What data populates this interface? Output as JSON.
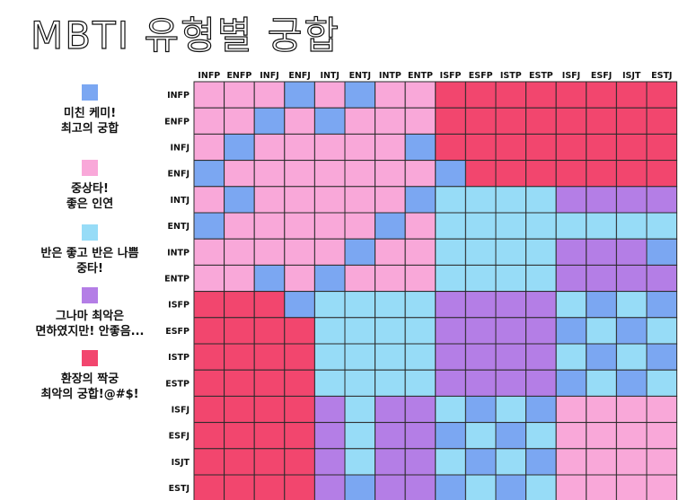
{
  "title": "MBTI 유형별 궁합",
  "legend": [
    {
      "color": "#7ba7f2",
      "label": "미친 케미!\n최고의 궁합"
    },
    {
      "color": "#f9a8d9",
      "label": "중상타!\n좋은 인연"
    },
    {
      "color": "#97dcf7",
      "label": "반은 좋고 반은 나쁨\n중타!"
    },
    {
      "color": "#b47ee6",
      "label": "그나마 최악은\n면하였지만! 안좋음..."
    },
    {
      "color": "#f2466e",
      "label": "환장의 짝궁\n최악의 궁합!@#$!"
    }
  ],
  "chart_data": {
    "type": "heatmap",
    "columns": [
      "INFP",
      "ENFP",
      "INFJ",
      "ENFJ",
      "INTJ",
      "ENTJ",
      "INTP",
      "ENTP",
      "ISFP",
      "ESFP",
      "ISTP",
      "ESTP",
      "ISFJ",
      "ESFJ",
      "ISJT",
      "ESTJ"
    ],
    "rows": [
      "INFP",
      "ENFP",
      "INFJ",
      "ENFJ",
      "INTJ",
      "ENTJ",
      "INTP",
      "ENTP",
      "ISFP",
      "ESFP",
      "ISTP",
      "ESTP",
      "ISFJ",
      "ESFJ",
      "ISJT",
      "ESTJ"
    ],
    "levels": {
      "1": "미친 케미! 최고의 궁합",
      "2": "중상타! 좋은 인연",
      "3": "반은 좋고 반은 나쁨 중타!",
      "4": "그나마 최악은 면하였지만! 안좋음...",
      "5": "환장의 짝궁 최악의 궁합!@#$!"
    },
    "values": [
      [
        2,
        2,
        2,
        1,
        2,
        1,
        2,
        2,
        5,
        5,
        5,
        5,
        5,
        5,
        5,
        5
      ],
      [
        2,
        2,
        1,
        2,
        1,
        2,
        2,
        2,
        5,
        5,
        5,
        5,
        5,
        5,
        5,
        5
      ],
      [
        2,
        1,
        2,
        2,
        2,
        2,
        2,
        1,
        5,
        5,
        5,
        5,
        5,
        5,
        5,
        5
      ],
      [
        1,
        2,
        2,
        2,
        2,
        2,
        2,
        2,
        1,
        5,
        5,
        5,
        5,
        5,
        5,
        5
      ],
      [
        2,
        1,
        2,
        2,
        2,
        2,
        2,
        1,
        3,
        3,
        3,
        3,
        4,
        4,
        4,
        4
      ],
      [
        1,
        2,
        2,
        2,
        2,
        2,
        1,
        2,
        3,
        3,
        3,
        3,
        3,
        3,
        3,
        3
      ],
      [
        2,
        2,
        2,
        2,
        2,
        1,
        2,
        2,
        3,
        3,
        3,
        3,
        4,
        4,
        4,
        1
      ],
      [
        2,
        2,
        1,
        2,
        1,
        2,
        2,
        2,
        3,
        3,
        3,
        3,
        4,
        4,
        4,
        4
      ],
      [
        5,
        5,
        5,
        1,
        3,
        3,
        3,
        3,
        4,
        4,
        4,
        4,
        3,
        1,
        3,
        1
      ],
      [
        5,
        5,
        5,
        5,
        3,
        3,
        3,
        3,
        4,
        4,
        4,
        4,
        1,
        3,
        1,
        3
      ],
      [
        5,
        5,
        5,
        5,
        3,
        3,
        3,
        3,
        4,
        4,
        4,
        4,
        3,
        1,
        3,
        1
      ],
      [
        5,
        5,
        5,
        5,
        3,
        3,
        3,
        3,
        4,
        4,
        4,
        4,
        1,
        3,
        1,
        3
      ],
      [
        5,
        5,
        5,
        5,
        4,
        3,
        4,
        4,
        3,
        1,
        3,
        1,
        2,
        2,
        2,
        2
      ],
      [
        5,
        5,
        5,
        5,
        4,
        3,
        4,
        4,
        1,
        3,
        1,
        3,
        2,
        2,
        2,
        2
      ],
      [
        5,
        5,
        5,
        5,
        4,
        3,
        4,
        4,
        3,
        1,
        3,
        1,
        2,
        2,
        2,
        2
      ],
      [
        5,
        5,
        5,
        5,
        4,
        1,
        4,
        4,
        1,
        3,
        1,
        3,
        2,
        2,
        2,
        2
      ]
    ]
  }
}
